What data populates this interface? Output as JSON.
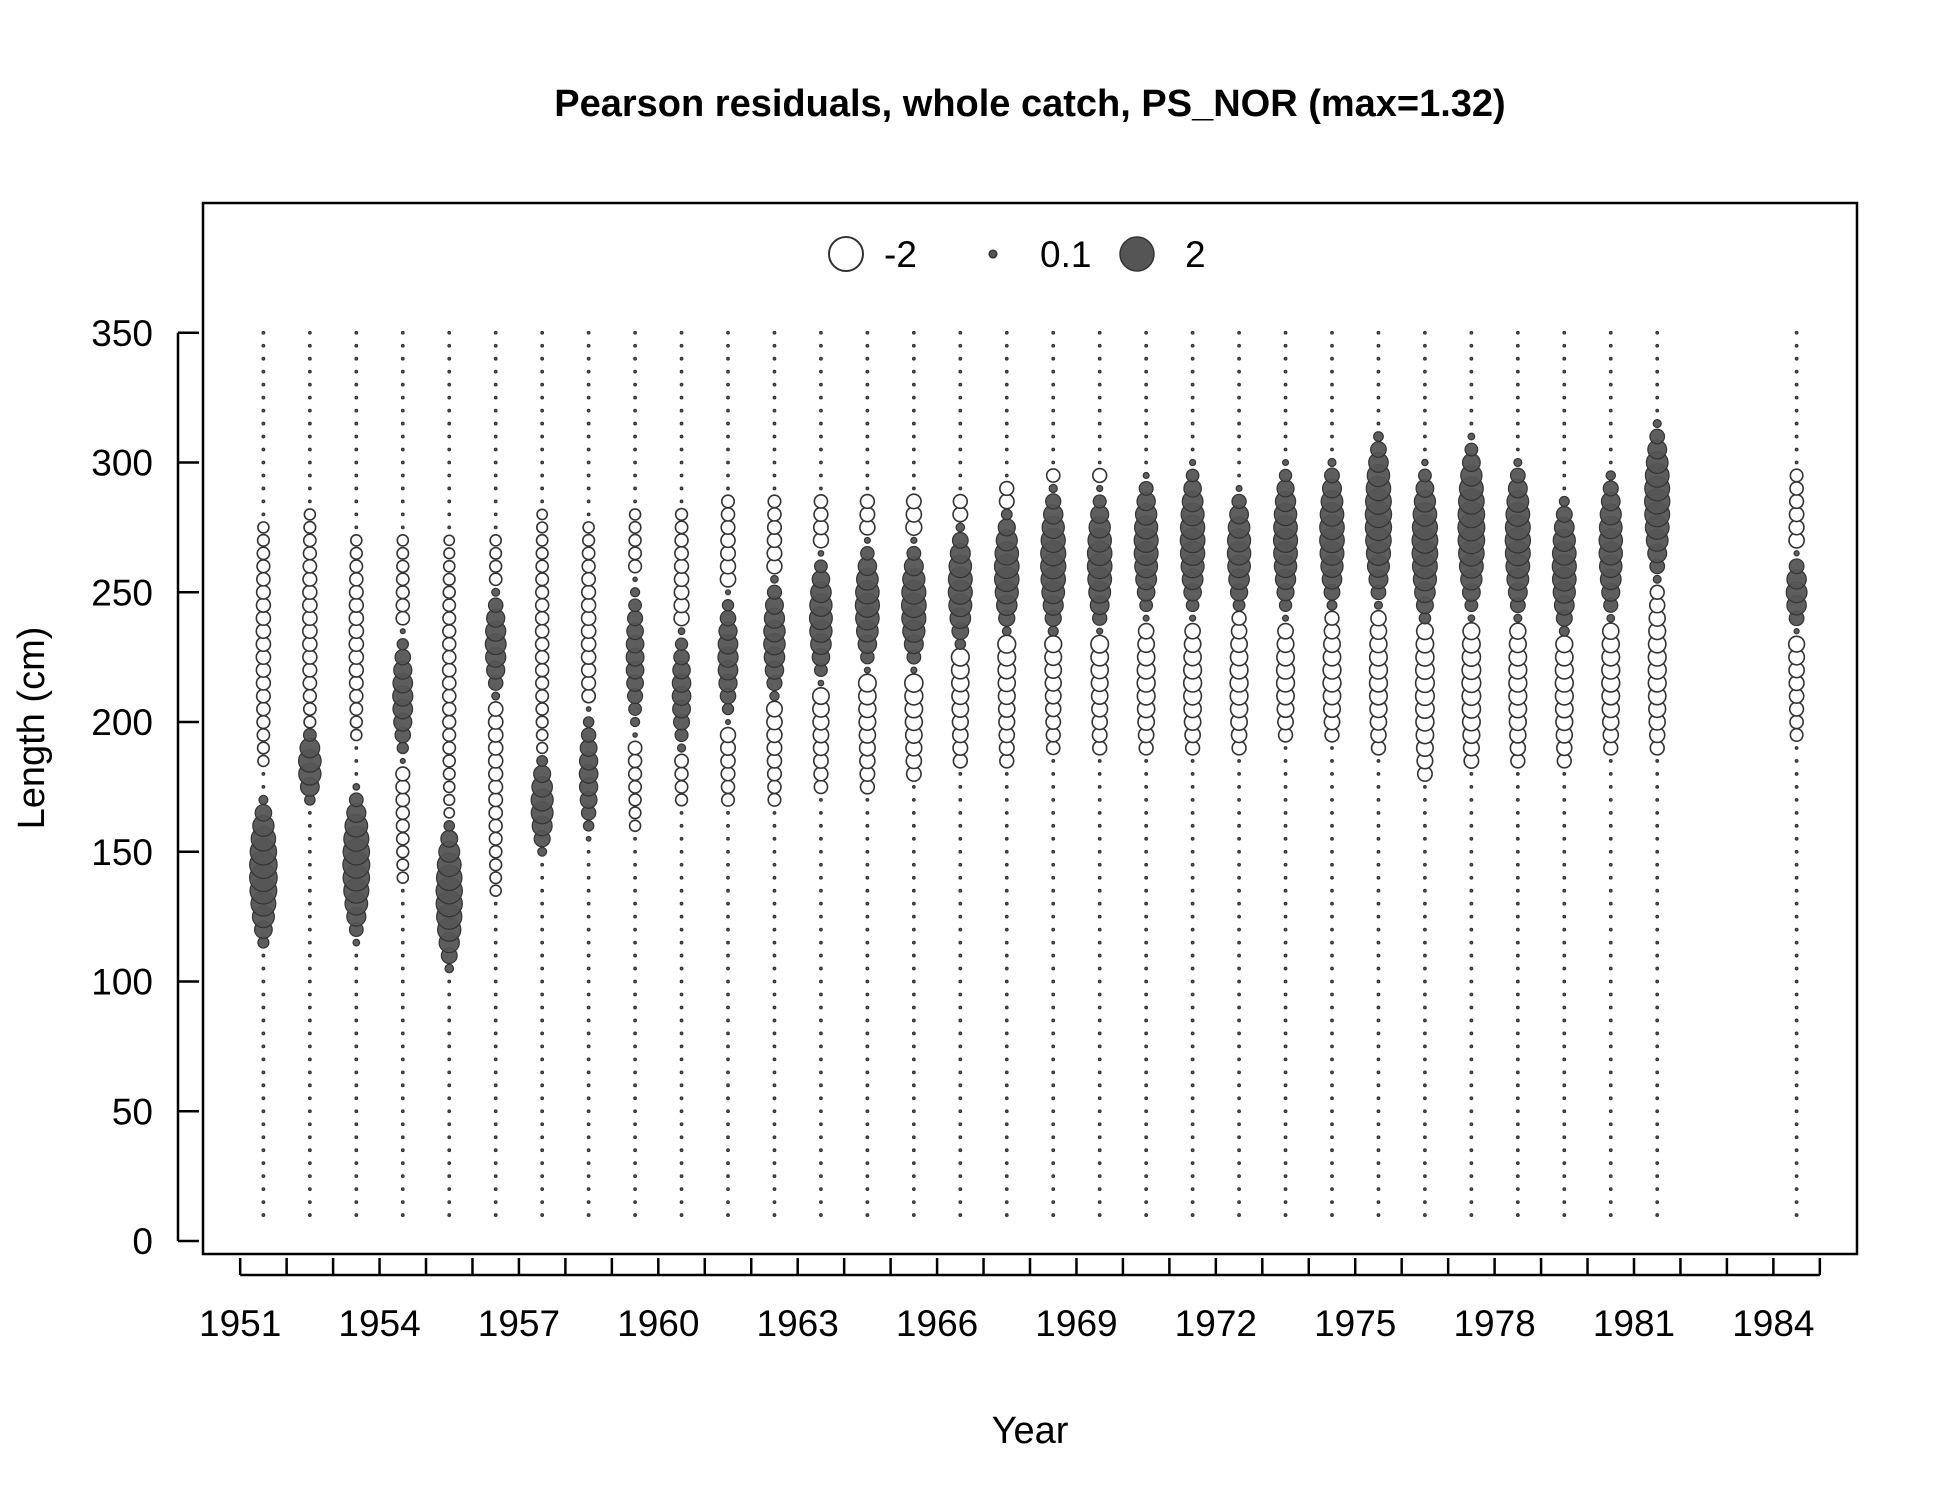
{
  "chart_data": {
    "type": "scatter",
    "subtype": "bubble",
    "title": "Pearson residuals, whole catch, PS_NOR (max=1.32)",
    "xlabel": "Year",
    "ylabel": "Length (cm)",
    "xlim": [
      1950.2,
      1985.8
    ],
    "ylim": [
      -5,
      400
    ],
    "x_ticks_minor": [
      1951,
      1952,
      1953,
      1954,
      1955,
      1956,
      1957,
      1958,
      1959,
      1960,
      1961,
      1962,
      1963,
      1964,
      1965,
      1966,
      1967,
      1968,
      1969,
      1970,
      1971,
      1972,
      1973,
      1974,
      1975,
      1976,
      1977,
      1978,
      1979,
      1980,
      1981,
      1982,
      1983,
      1984,
      1985
    ],
    "x_tick_labels": [
      "1951",
      "1954",
      "1957",
      "1960",
      "1963",
      "1966",
      "1969",
      "1972",
      "1975",
      "1978",
      "1981",
      "1984"
    ],
    "y_ticks": [
      0,
      50,
      100,
      150,
      200,
      250,
      300,
      350
    ],
    "legend": {
      "placement": "top-center",
      "entries": [
        {
          "label": "-2",
          "value": -2
        },
        {
          "label": "0.1",
          "value": 0.1
        },
        {
          "label": "2",
          "value": 2
        }
      ]
    },
    "colors": {
      "positive": "#555555",
      "negative": "#ffffff",
      "stroke": "#333333"
    },
    "grid": false,
    "length_bins": {
      "start": 10,
      "end": 350,
      "step": 5
    },
    "years": [
      1951.5,
      1952.5,
      1953.5,
      1954.5,
      1955.5,
      1956.5,
      1957.5,
      1958.5,
      1959.5,
      1960.5,
      1961.5,
      1962.5,
      1963.5,
      1964.5,
      1965.5,
      1966.5,
      1967.5,
      1968.5,
      1969.5,
      1970.5,
      1971.5,
      1972.5,
      1973.5,
      1974.5,
      1975.5,
      1976.5,
      1977.5,
      1978.5,
      1979.5,
      1980.5,
      1981.5,
      1984.5
    ],
    "positive_peak_length": [
      142,
      183,
      145,
      210,
      133,
      230,
      168,
      180,
      225,
      212,
      225,
      232,
      240,
      245,
      245,
      252,
      258,
      262,
      262,
      268,
      270,
      266,
      270,
      272,
      278,
      268,
      275,
      270,
      260,
      268,
      285,
      250
    ],
    "positive_peak_residual": [
      1.32,
      0.9,
      1.25,
      0.7,
      1.2,
      0.75,
      0.85,
      0.6,
      0.55,
      0.6,
      0.7,
      0.8,
      0.9,
      1.0,
      1.05,
      1.0,
      1.05,
      1.1,
      1.05,
      1.0,
      1.05,
      0.95,
      1.0,
      1.05,
      1.2,
      1.15,
      1.25,
      1.1,
      1.0,
      0.95,
      1.1,
      0.75
    ],
    "positive_spread": [
      30,
      15,
      30,
      25,
      30,
      22,
      20,
      25,
      30,
      25,
      25,
      25,
      25,
      25,
      25,
      25,
      25,
      30,
      28,
      28,
      30,
      25,
      30,
      30,
      35,
      32,
      35,
      32,
      28,
      30,
      32,
      15
    ],
    "negative_range": [
      [
        185,
        275
      ],
      [
        195,
        280
      ],
      [
        195,
        270
      ],
      [
        140,
        270
      ],
      [
        165,
        270
      ],
      [
        135,
        270
      ],
      [
        185,
        280
      ],
      [
        190,
        275
      ],
      [
        160,
        280
      ],
      [
        170,
        280
      ],
      [
        170,
        285
      ],
      [
        170,
        285
      ],
      [
        175,
        285
      ],
      [
        175,
        285
      ],
      [
        180,
        285
      ],
      [
        185,
        285
      ],
      [
        185,
        290
      ],
      [
        190,
        295
      ],
      [
        190,
        295
      ],
      [
        190,
        240
      ],
      [
        190,
        240
      ],
      [
        190,
        240
      ],
      [
        195,
        240
      ],
      [
        195,
        240
      ],
      [
        190,
        245
      ],
      [
        180,
        245
      ],
      [
        185,
        245
      ],
      [
        185,
        245
      ],
      [
        185,
        245
      ],
      [
        190,
        245
      ],
      [
        190,
        250
      ],
      [
        195,
        295
      ]
    ],
    "negative_peak_residual": [
      -0.35,
      -0.35,
      -0.35,
      -0.35,
      -0.3,
      -0.35,
      -0.3,
      -0.35,
      -0.35,
      -0.4,
      -0.45,
      -0.45,
      -0.5,
      -0.55,
      -0.6,
      -0.55,
      -0.55,
      -0.5,
      -0.55,
      -0.55,
      -0.55,
      -0.55,
      -0.55,
      -0.55,
      -0.55,
      -0.6,
      -0.6,
      -0.55,
      -0.55,
      -0.55,
      -0.55,
      -0.45
    ]
  }
}
